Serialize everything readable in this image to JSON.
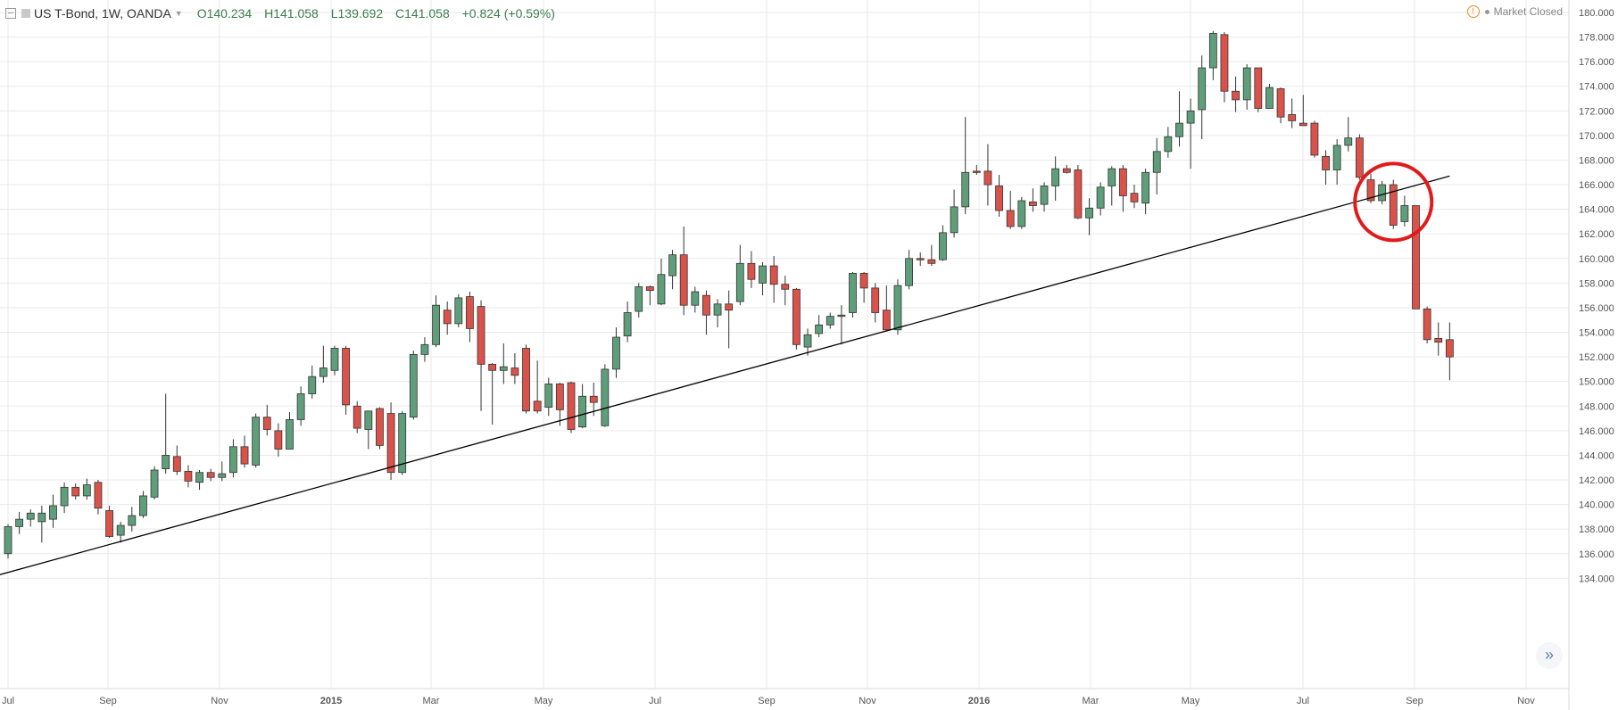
{
  "header": {
    "symbol": "US T-Bond, 1W, OANDA",
    "open": "O140.234",
    "high": "H141.058",
    "low": "L139.692",
    "close": "C141.058",
    "change": "+0.824 (+0.59%)"
  },
  "market_status": "Market Closed",
  "colors": {
    "up": "#5f9e7a",
    "down": "#d9534a",
    "highlight": "#e01b1b",
    "trendline": "#000000",
    "grid": "#eaeaea"
  },
  "chart_data": {
    "type": "candlestick",
    "ylim": [
      133,
      180.5
    ],
    "ytick_labels": [
      "134.000",
      "136.000",
      "138.000",
      "140.000",
      "142.000",
      "144.000",
      "146.000",
      "148.000",
      "150.000",
      "152.000",
      "154.000",
      "156.000",
      "158.000",
      "160.000",
      "162.000",
      "164.000",
      "166.000",
      "168.000",
      "170.000",
      "172.000",
      "174.000",
      "176.000",
      "178.000",
      "180.000"
    ],
    "x_labels": [
      "Jul",
      "Sep",
      "Nov",
      "2015",
      "Mar",
      "May",
      "Jul",
      "Sep",
      "Nov",
      "2016",
      "Mar",
      "May",
      "Jul",
      "Sep",
      "Nov"
    ],
    "candles": [
      [
        136.0,
        138.2,
        135.6,
        138.4
      ],
      [
        138.2,
        138.8,
        137.6,
        139.4
      ],
      [
        138.8,
        139.3,
        138.2,
        139.6
      ],
      [
        138.6,
        139.3,
        136.9,
        139.9
      ],
      [
        138.8,
        139.9,
        138.1,
        140.8
      ],
      [
        139.9,
        141.4,
        139.3,
        141.8
      ],
      [
        141.4,
        140.7,
        140.4,
        141.7
      ],
      [
        140.7,
        141.6,
        140.4,
        142.1
      ],
      [
        141.8,
        139.7,
        139.2,
        142.0
      ],
      [
        139.5,
        137.4,
        137.3,
        139.9
      ],
      [
        137.5,
        138.3,
        136.9,
        138.6
      ],
      [
        138.3,
        139.1,
        137.8,
        139.8
      ],
      [
        139.1,
        140.7,
        138.9,
        141.1
      ],
      [
        140.6,
        142.8,
        140.4,
        143.1
      ],
      [
        142.9,
        144.0,
        142.5,
        149.0
      ],
      [
        143.9,
        142.7,
        142.4,
        144.8
      ],
      [
        142.7,
        141.9,
        141.4,
        143.2
      ],
      [
        141.8,
        142.6,
        141.2,
        142.8
      ],
      [
        142.6,
        142.2,
        141.9,
        142.9
      ],
      [
        142.2,
        142.5,
        141.9,
        143.5
      ],
      [
        142.6,
        144.7,
        142.2,
        145.3
      ],
      [
        144.7,
        143.3,
        143.0,
        145.6
      ],
      [
        143.2,
        147.1,
        143.0,
        147.4
      ],
      [
        147.1,
        146.1,
        145.6,
        148.1
      ],
      [
        146.0,
        144.5,
        143.9,
        146.6
      ],
      [
        144.5,
        146.9,
        144.5,
        147.5
      ],
      [
        146.9,
        149.0,
        146.4,
        149.6
      ],
      [
        149.0,
        150.4,
        148.6,
        151.3
      ],
      [
        150.4,
        151.1,
        149.9,
        152.9
      ],
      [
        150.9,
        152.7,
        150.5,
        152.9
      ],
      [
        152.7,
        148.1,
        147.3,
        152.9
      ],
      [
        148.0,
        146.2,
        145.8,
        148.4
      ],
      [
        146.1,
        147.6,
        144.5,
        147.6
      ],
      [
        147.8,
        144.8,
        144.5,
        147.9
      ],
      [
        147.4,
        142.6,
        142.0,
        148.3
      ],
      [
        142.6,
        147.4,
        142.4,
        147.6
      ],
      [
        147.1,
        152.2,
        146.9,
        152.5
      ],
      [
        152.2,
        153.0,
        151.6,
        153.6
      ],
      [
        153.0,
        156.2,
        152.8,
        157.0
      ],
      [
        155.8,
        154.7,
        153.8,
        156.5
      ],
      [
        154.7,
        156.8,
        154.4,
        157.1
      ],
      [
        156.9,
        154.3,
        153.2,
        157.3
      ],
      [
        156.1,
        151.4,
        147.6,
        156.6
      ],
      [
        151.4,
        150.9,
        146.5,
        151.5
      ],
      [
        150.9,
        151.2,
        149.8,
        153.1
      ],
      [
        151.1,
        150.5,
        149.8,
        152.3
      ],
      [
        152.7,
        147.6,
        147.4,
        153.0
      ],
      [
        148.4,
        147.6,
        147.4,
        151.7
      ],
      [
        147.9,
        149.8,
        147.2,
        150.3
      ],
      [
        149.8,
        147.7,
        146.4,
        149.9
      ],
      [
        149.9,
        146.1,
        145.8,
        150.0
      ],
      [
        146.3,
        148.8,
        146.2,
        149.8
      ],
      [
        148.8,
        148.3,
        147.2,
        149.9
      ],
      [
        146.4,
        151.0,
        146.3,
        151.4
      ],
      [
        151.0,
        153.6,
        150.3,
        154.4
      ],
      [
        153.7,
        155.6,
        153.2,
        156.5
      ],
      [
        155.7,
        157.7,
        155.2,
        158.0
      ],
      [
        157.7,
        157.4,
        156.2,
        157.8
      ],
      [
        156.3,
        158.7,
        156.2,
        160.0
      ],
      [
        158.6,
        160.3,
        157.5,
        160.7
      ],
      [
        160.3,
        156.2,
        155.4,
        162.6
      ],
      [
        156.2,
        157.3,
        155.6,
        157.7
      ],
      [
        157.0,
        155.4,
        153.8,
        157.4
      ],
      [
        155.4,
        156.3,
        154.4,
        156.7
      ],
      [
        156.3,
        155.8,
        152.7,
        157.4
      ],
      [
        156.5,
        159.6,
        156.2,
        161.1
      ],
      [
        159.6,
        158.3,
        157.6,
        160.6
      ],
      [
        158.0,
        159.4,
        157.0,
        159.7
      ],
      [
        159.4,
        157.9,
        156.4,
        160.2
      ],
      [
        157.9,
        157.5,
        156.2,
        158.6
      ],
      [
        157.5,
        153.0,
        152.6,
        157.6
      ],
      [
        152.8,
        153.8,
        152.1,
        154.3
      ],
      [
        153.9,
        154.6,
        153.6,
        155.4
      ],
      [
        154.6,
        155.3,
        154.3,
        155.6
      ],
      [
        155.3,
        155.4,
        153.0,
        156.2
      ],
      [
        155.6,
        158.8,
        155.2,
        158.9
      ],
      [
        158.8,
        157.6,
        156.4,
        158.9
      ],
      [
        157.6,
        155.6,
        154.8,
        158.0
      ],
      [
        155.8,
        154.2,
        154.1,
        157.8
      ],
      [
        154.2,
        157.8,
        153.8,
        158.3
      ],
      [
        157.8,
        160.0,
        157.5,
        160.7
      ],
      [
        160.0,
        159.9,
        159.4,
        160.5
      ],
      [
        159.9,
        159.6,
        159.4,
        161.1
      ],
      [
        159.9,
        162.1,
        159.8,
        162.7
      ],
      [
        162.1,
        164.2,
        161.7,
        165.6
      ],
      [
        164.2,
        167.0,
        163.6,
        171.5
      ],
      [
        167.1,
        167.0,
        166.8,
        167.6
      ],
      [
        167.1,
        166.0,
        164.3,
        169.3
      ],
      [
        165.9,
        163.9,
        163.4,
        166.8
      ],
      [
        163.9,
        162.6,
        162.4,
        165.5
      ],
      [
        162.6,
        164.7,
        162.4,
        165.0
      ],
      [
        164.6,
        164.3,
        163.8,
        165.7
      ],
      [
        164.4,
        165.9,
        163.8,
        166.2
      ],
      [
        165.9,
        167.3,
        164.7,
        168.3
      ],
      [
        167.3,
        167.0,
        166.9,
        167.6
      ],
      [
        167.2,
        163.3,
        163.2,
        167.6
      ],
      [
        163.3,
        164.1,
        161.9,
        164.9
      ],
      [
        164.1,
        165.8,
        163.5,
        166.2
      ],
      [
        165.9,
        167.3,
        164.3,
        167.5
      ],
      [
        167.3,
        165.1,
        163.8,
        167.6
      ],
      [
        165.3,
        164.6,
        164.1,
        166.0
      ],
      [
        164.5,
        167.0,
        163.6,
        167.3
      ],
      [
        167.0,
        168.7,
        165.2,
        169.8
      ],
      [
        168.7,
        169.9,
        168.2,
        170.7
      ],
      [
        169.9,
        171.0,
        169.1,
        173.6
      ],
      [
        171.0,
        172.0,
        167.3,
        173.0
      ],
      [
        172.1,
        175.5,
        169.7,
        176.5
      ],
      [
        175.5,
        178.3,
        174.5,
        178.5
      ],
      [
        178.2,
        173.6,
        172.7,
        178.4
      ],
      [
        173.6,
        172.9,
        171.9,
        174.8
      ],
      [
        172.9,
        175.5,
        172.1,
        175.8
      ],
      [
        175.5,
        172.2,
        171.9,
        175.2
      ],
      [
        172.2,
        173.9,
        172.3,
        174.2
      ],
      [
        173.8,
        171.5,
        171.0,
        173.9
      ],
      [
        171.7,
        171.2,
        170.6,
        173.0
      ],
      [
        171.0,
        170.8,
        170.8,
        173.3
      ],
      [
        171.0,
        168.4,
        168.2,
        171.2
      ],
      [
        168.3,
        167.2,
        166.0,
        168.8
      ],
      [
        167.2,
        169.2,
        166.0,
        169.7
      ],
      [
        169.2,
        169.8,
        168.7,
        171.5
      ],
      [
        169.8,
        166.6,
        166.4,
        170.1
      ],
      [
        166.4,
        164.7,
        164.5,
        166.9
      ],
      [
        164.7,
        166.0,
        164.4,
        166.3
      ],
      [
        166.0,
        162.7,
        162.4,
        166.4
      ],
      [
        163.0,
        164.3,
        162.6,
        165.1
      ],
      [
        164.3,
        155.9,
        155.9,
        164.3
      ],
      [
        155.9,
        153.4,
        153.1,
        156.1
      ],
      [
        153.5,
        153.2,
        152.1,
        154.8
      ],
      [
        153.4,
        152.0,
        150.1,
        154.8
      ]
    ],
    "trendline": {
      "start": [
        "first-week",
        134.3
      ],
      "end": [
        "week-128",
        166.7
      ]
    }
  }
}
